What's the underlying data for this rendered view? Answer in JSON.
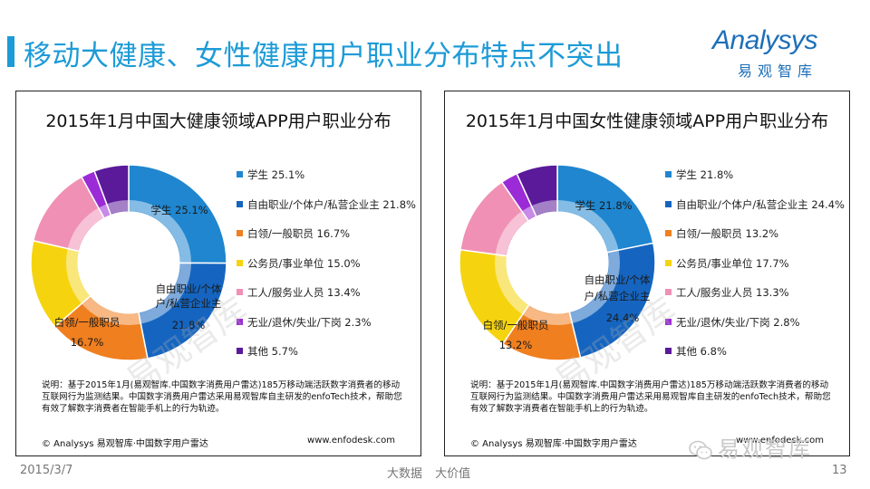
{
  "slide": {
    "title": "移动大健康、女性健康用户职业分布特点不突出",
    "logo_word": "Analysys",
    "logo_cn": "易观智库",
    "date": "2015/3/7",
    "tagline": "大数据 大价值",
    "page_number": "13",
    "wechat_watermark": "易观智库",
    "watermark_text": "易观智库"
  },
  "chart_data": [
    {
      "type": "pie",
      "title": "2015年1月中国大健康领域APP用户职业分布",
      "categories": [
        "学生",
        "自由职业/个体户/私营企业主",
        "白领/一般职员",
        "公务员/事业单位",
        "工人/服务业人员",
        "无业/退休/失业/下岗",
        "其他"
      ],
      "values": [
        25.1,
        21.8,
        16.7,
        15.0,
        13.4,
        2.3,
        5.7
      ],
      "unit": "%",
      "colors": [
        "#1f86cf",
        "#1565c0",
        "#f07f1f",
        "#f5d40f",
        "#f090b4",
        "#9b2bd6",
        "#5a1a9a"
      ],
      "legend": [
        "学生 25.1%",
        "自由职业/个体户/私营企业主 21.8%",
        "白领/一般职员 16.7%",
        "公务员/事业单位 15.0%",
        "工人/服务业人员 13.4%",
        "无业/退休/失业/下岗 2.3%",
        "其他 5.7%"
      ],
      "data_labels": [
        {
          "line1": "学生 25.1%",
          "line2": ""
        },
        {
          "line1": "自由职业/个体",
          "line2": "户/私营企业主",
          "line3": "21.8%"
        },
        {
          "line1": "白领/一般职员",
          "line2": "16.7%"
        }
      ],
      "legend_position": "right",
      "note": "说明：基于2015年1月(易观智库.中国数字消费用户雷达)185万移动端活跃数字消费者的移动互联网行为监测结果。中国数字消费用户雷达采用易观智库自主研发的enfoTech技术，帮助您有效了解数字消费者在智能手机上的行为轨迹。",
      "source": "© Analysys 易观智库·中国数字用户雷达",
      "url": "www.enfodesk.com"
    },
    {
      "type": "pie",
      "title": "2015年1月中国女性健康领域APP用户职业分布",
      "categories": [
        "学生",
        "自由职业/个体户/私营企业主",
        "白领/一般职员",
        "公务员/事业单位",
        "工人/服务业人员",
        "无业/退休/失业/下岗",
        "其他"
      ],
      "values": [
        21.8,
        24.4,
        13.2,
        17.7,
        13.3,
        2.8,
        6.8
      ],
      "unit": "%",
      "colors": [
        "#1f86cf",
        "#1565c0",
        "#f07f1f",
        "#f5d40f",
        "#f090b4",
        "#9b2bd6",
        "#5a1a9a"
      ],
      "legend": [
        "学生 21.8%",
        "自由职业/个体户/私营企业主 24.4%",
        "白领/一般职员 13.2%",
        "公务员/事业单位 17.7%",
        "工人/服务业人员 13.3%",
        "无业/退休/失业/下岗 2.8%",
        "其他 6.8%"
      ],
      "data_labels": [
        {
          "line1": "学生 21.8%",
          "line2": ""
        },
        {
          "line1": "自由职业/个体",
          "line2": "户/私营企业主",
          "line3": "24.4%"
        },
        {
          "line1": "白领/一般职员",
          "line2": "13.2%"
        }
      ],
      "legend_position": "right",
      "note": "说明：基于2015年1月(易观智库.中国数字消费用户雷达)185万移动端活跃数字消费者的移动互联网行为监测结果。中国数字消费用户雷达采用易观智库自主研发的enfoTech技术，帮助您有效了解数字消费者在智能手机上的行为轨迹。",
      "source": "© Analysys 易观智库·中国数字用户雷达",
      "url": "www.enfodesk.com"
    }
  ]
}
